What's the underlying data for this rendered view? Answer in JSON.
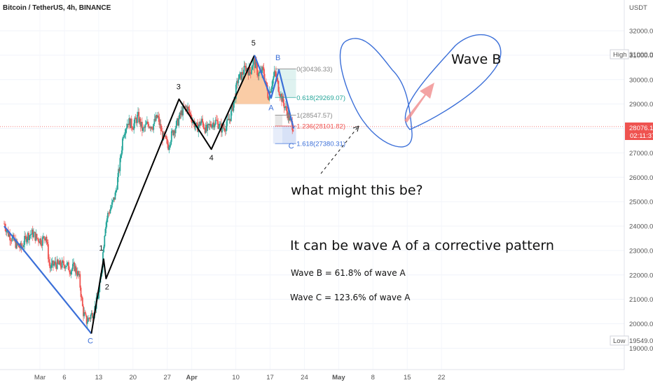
{
  "header": {
    "title": "Bitcoin / TetherUS, 4h, BINANCE",
    "currency": "USDT"
  },
  "price_axis": {
    "high_label": "High",
    "high_value": "31000.00",
    "low_label": "Low",
    "low_value": "19549.09",
    "current_price": "28076.11",
    "countdown": "02:11:37"
  },
  "colors": {
    "up": "#26a69a",
    "down": "#ef5350",
    "impulse": "#000000",
    "correction": "#3b6fd8",
    "ellipse": "#3b6fd8",
    "orange_zone": "#f5a35c",
    "arrow": "#f08c8c",
    "current": "#ef5350"
  },
  "annotations": {
    "question": "what might this be?",
    "wave_a_note": "It can be wave A of a corrective pattern",
    "wave_b_rule": "Wave B = 61.8% of wave A",
    "wave_c_rule": "Wave C = 123.6% of wave A",
    "wave_b_big": "Wave B"
  },
  "chart_data": {
    "type": "line",
    "title": "Bitcoin / TetherUS, 4h, BINANCE",
    "xlabel": "",
    "ylabel": "USDT",
    "ylim": [
      18600,
      32500
    ],
    "x_ticks": [
      "Mar",
      "6",
      "13",
      "20",
      "27",
      "Apr",
      "10",
      "17",
      "24",
      "May",
      "8",
      "15",
      "22"
    ],
    "x_tick_days": [
      0,
      5,
      12,
      19,
      26,
      31,
      40,
      47,
      54,
      61,
      68,
      75,
      82
    ],
    "y_ticks": [
      "19000.00",
      "20000.00",
      "21000.00",
      "22000.00",
      "23000.00",
      "24000.00",
      "25000.00",
      "26000.00",
      "27000.00",
      "28000.00",
      "29000.00",
      "30000.00",
      "31000.00",
      "32000.00"
    ],
    "y_tick_values": [
      19000,
      20000,
      21000,
      22000,
      23000,
      24000,
      25000,
      26000,
      27000,
      28000,
      29000,
      30000,
      31000,
      32000
    ],
    "price_path": [
      [
        -7.3,
        24100
      ],
      [
        -6.5,
        23700
      ],
      [
        -5.5,
        23450
      ],
      [
        -4.7,
        23200
      ],
      [
        -3.8,
        23100
      ],
      [
        -2.7,
        23600
      ],
      [
        -1.5,
        23700
      ],
      [
        -0.6,
        23500
      ],
      [
        0.4,
        23400
      ],
      [
        1.2,
        23650
      ],
      [
        2.0,
        22300
      ],
      [
        3.0,
        22450
      ],
      [
        4.1,
        22400
      ],
      [
        5.3,
        22450
      ],
      [
        6.3,
        22200
      ],
      [
        7.0,
        22350
      ],
      [
        8.0,
        21900
      ],
      [
        8.8,
        20500
      ],
      [
        9.5,
        20100
      ],
      [
        10.1,
        20250
      ],
      [
        10.6,
        20400
      ],
      [
        11.3,
        20700
      ],
      [
        12.1,
        21300
      ],
      [
        12.7,
        22500
      ],
      [
        13.3,
        24000
      ],
      [
        13.9,
        24500
      ],
      [
        14.6,
        24800
      ],
      [
        15.4,
        25300
      ],
      [
        16.3,
        26500
      ],
      [
        17.0,
        27800
      ],
      [
        18.0,
        28300
      ],
      [
        19.0,
        28100
      ],
      [
        20.0,
        28500
      ],
      [
        21.0,
        27900
      ],
      [
        22.0,
        28200
      ],
      [
        23.0,
        28100
      ],
      [
        24.0,
        28500
      ],
      [
        25.0,
        27700
      ],
      [
        26.2,
        27300
      ],
      [
        27.0,
        27800
      ],
      [
        28.0,
        28200
      ],
      [
        29.0,
        28700
      ],
      [
        30.0,
        28900
      ],
      [
        31.0,
        28400
      ],
      [
        32.0,
        28000
      ],
      [
        33.0,
        28300
      ],
      [
        34.0,
        27900
      ],
      [
        35.0,
        28200
      ],
      [
        36.0,
        28300
      ],
      [
        37.0,
        28000
      ],
      [
        38.0,
        28100
      ],
      [
        38.9,
        28500
      ],
      [
        39.6,
        29100
      ],
      [
        40.4,
        30000
      ],
      [
        41.2,
        30200
      ],
      [
        42.0,
        30500
      ],
      [
        42.9,
        30300
      ],
      [
        43.6,
        30800
      ],
      [
        44.6,
        30200
      ],
      [
        45.6,
        30400
      ],
      [
        46.6,
        29300
      ],
      [
        47.4,
        29900
      ],
      [
        48.0,
        30300
      ],
      [
        48.8,
        29600
      ],
      [
        49.6,
        29100
      ],
      [
        50.4,
        28700
      ],
      [
        51.1,
        28300
      ],
      [
        51.7,
        28076
      ]
    ],
    "waves": [
      {
        "points": [
          [
            -7.3,
            24000
          ],
          [
            10.5,
            19600
          ]
        ],
        "style": "correction"
      },
      {
        "points": [
          [
            10.5,
            19600
          ],
          [
            13.0,
            22650
          ],
          [
            13.5,
            21850
          ],
          [
            28.4,
            29200
          ],
          [
            35.0,
            27150
          ],
          [
            43.8,
            31000
          ]
        ],
        "style": "impulse"
      },
      {
        "points": [
          [
            43.8,
            31000
          ],
          [
            47.2,
            29250
          ],
          [
            48.8,
            30400
          ],
          [
            51.8,
            28000
          ]
        ],
        "style": "correction"
      }
    ],
    "wave_labels": [
      {
        "text": "C",
        "x": 10.3,
        "y": 19200,
        "color": "correction"
      },
      {
        "text": "1",
        "x": 12.5,
        "y": 23000,
        "color": "impulse"
      },
      {
        "text": "2",
        "x": 13.7,
        "y": 21400,
        "color": "impulse"
      },
      {
        "text": "3",
        "x": 28.3,
        "y": 29600,
        "color": "impulse"
      },
      {
        "text": "4",
        "x": 35.0,
        "y": 26700,
        "color": "impulse"
      },
      {
        "text": "5",
        "x": 43.6,
        "y": 31400,
        "color": "impulse"
      },
      {
        "text": "B",
        "x": 48.6,
        "y": 30800,
        "color": "correction"
      },
      {
        "text": "A",
        "x": 47.2,
        "y": 28750,
        "color": "correction"
      },
      {
        "text": "C",
        "x": 51.3,
        "y": 27180,
        "color": "correction"
      }
    ],
    "fib_levels": [
      {
        "label": "0(30436.33)",
        "value": 30436.33,
        "color": "#888888"
      },
      {
        "label": "0.618(29269.07)",
        "value": 29269.07,
        "color": "#26a69a"
      },
      {
        "label": "1(28547.57)",
        "value": 28547.57,
        "color": "#888888"
      },
      {
        "label": "1.236(28101.82)",
        "value": 28101.82,
        "color": "#ef5350"
      },
      {
        "label": "1.618(27380.31)",
        "value": 27380.31,
        "color": "#3b6fd8"
      }
    ],
    "current_price": 28076.11
  }
}
